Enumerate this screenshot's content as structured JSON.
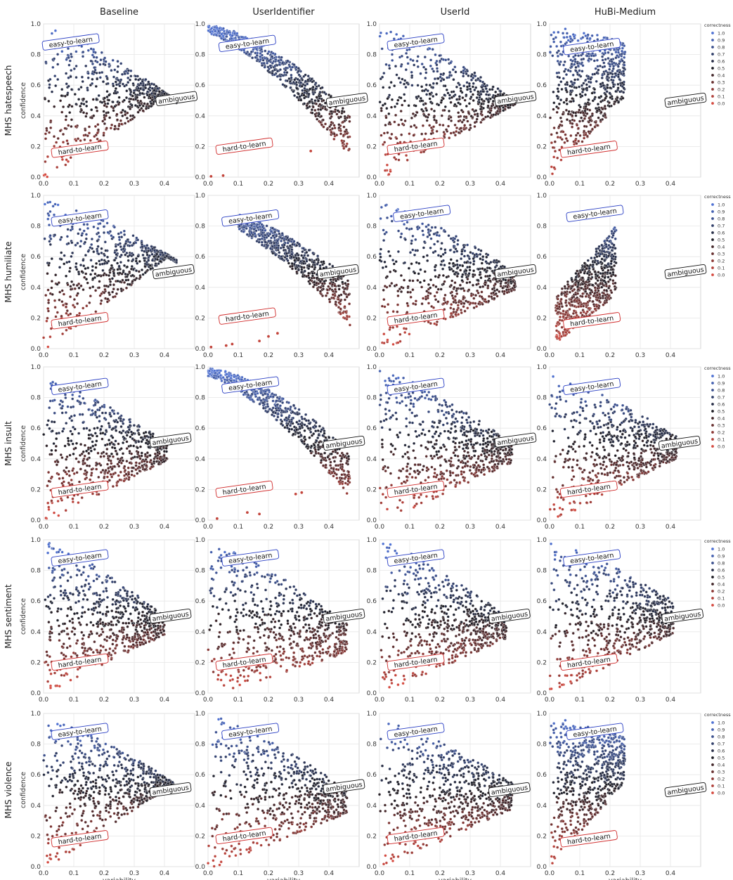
{
  "figure": {
    "columns": [
      "Baseline",
      "UserIdentifier",
      "UserId",
      "HuBi-Medium"
    ],
    "rows": [
      "MHS hatespeech",
      "MHS humiliate",
      "MHS insult",
      "MHS sentiment",
      "MHS violence"
    ],
    "ylabel": "confidence",
    "xlabel": "variability",
    "region_labels": {
      "easy": "easy-to-learn",
      "ambiguous": "ambiguous",
      "hard": "hard-to-learn"
    },
    "legend_title": "correctness",
    "legend_values": [
      "1.0",
      "0.9",
      "0.8",
      "0.7",
      "0.6",
      "0.5",
      "0.4",
      "0.3",
      "0.2",
      "0.1",
      "0.0"
    ],
    "legend_values_sentiment": [
      "1.0",
      "0.9",
      "0.8",
      "0.6",
      "0.5",
      "0.4",
      "0.2",
      "0.1",
      "0.0"
    ],
    "legend_rows": [
      0,
      1,
      2,
      3,
      4
    ],
    "colors": {
      "high": "#4f72d4",
      "mid": "#1d1d24",
      "low": "#d5493f",
      "grid": "#e6e6e6",
      "spine": "#cccccc"
    }
  },
  "chart_data": [
    {
      "type": "scatter",
      "row": "MHS hatespeech",
      "model": "Baseline",
      "xlim": [
        0,
        0.5
      ],
      "ylim": [
        0,
        1
      ],
      "x_ticks": [
        "0.0",
        "0.1",
        "0.2",
        "0.3",
        "0.4"
      ],
      "y_ticks": [
        "0.0",
        "0.2",
        "0.4",
        "0.6",
        "0.8",
        "1.0"
      ],
      "xlabel": "",
      "ylabel": "confidence",
      "region_positions": {
        "easy": [
          0.09,
          0.88
        ],
        "ambiguous": [
          0.44,
          0.51
        ],
        "hard": [
          0.12,
          0.18
        ]
      },
      "spread": {
        "top_start": 0.99,
        "top_end": 0.5,
        "top_xmax": 0.44,
        "bottom_slope": 1.35,
        "xmax": 0.44,
        "hard_share": 0.25
      }
    },
    {
      "type": "scatter",
      "row": "MHS hatespeech",
      "model": "UserIdentifier",
      "xlim": [
        0,
        0.5
      ],
      "ylim": [
        0,
        1
      ],
      "x_ticks": [
        "0.0",
        "0.1",
        "0.2",
        "0.3",
        "0.4"
      ],
      "y_ticks": [
        "0.0",
        "0.2",
        "0.4",
        "0.6",
        "0.8",
        "1.0"
      ],
      "xlabel": "",
      "ylabel": "",
      "region_positions": {
        "easy": [
          0.13,
          0.87
        ],
        "ambiguous": [
          0.46,
          0.5
        ],
        "hard": [
          0.12,
          0.2
        ]
      },
      "spread": {
        "band": true,
        "top_start": 0.99,
        "top_end": 0.42,
        "top_xmax": 0.47,
        "xmax": 0.47,
        "hard_share": 0.04,
        "outliers": [
          [
            0.01,
            0.005
          ],
          [
            0.05,
            0.01
          ],
          [
            0.34,
            0.17
          ]
        ]
      }
    },
    {
      "type": "scatter",
      "row": "MHS hatespeech",
      "model": "UserId",
      "xlim": [
        0,
        0.5
      ],
      "ylim": [
        0,
        1
      ],
      "x_ticks": [
        "0.0",
        "0.1",
        "0.2",
        "0.3",
        "0.4"
      ],
      "y_ticks": [
        "0.0",
        "0.2",
        "0.4",
        "0.6",
        "0.8",
        "1.0"
      ],
      "xlabel": "",
      "ylabel": "",
      "region_positions": {
        "easy": [
          0.12,
          0.88
        ],
        "ambiguous": [
          0.45,
          0.51
        ],
        "hard": [
          0.12,
          0.2
        ]
      },
      "spread": {
        "top_start": 0.99,
        "top_end": 0.5,
        "top_xmax": 0.45,
        "bottom_slope": 1.1,
        "xmax": 0.45,
        "hard_share": 0.2,
        "sparse_low": true
      }
    },
    {
      "type": "scatter",
      "row": "MHS hatespeech",
      "model": "HuBi-Medium",
      "xlim": [
        0,
        0.5
      ],
      "ylim": [
        0,
        1
      ],
      "x_ticks": [
        "0.0",
        "0.1",
        "0.2",
        "0.3",
        "0.4"
      ],
      "y_ticks": [
        "0.0",
        "0.2",
        "0.4",
        "0.6",
        "0.8",
        "1.0"
      ],
      "xlabel": "",
      "ylabel": "",
      "region_positions": {
        "easy": [
          0.14,
          0.85
        ],
        "ambiguous": [
          0.45,
          0.5
        ],
        "hard": [
          0.13,
          0.18
        ]
      },
      "spread": {
        "top_start": 0.99,
        "top_end": 0.88,
        "top_xmax": 0.25,
        "bottom_slope": 2.2,
        "xmax": 0.25,
        "hard_share": 0.4
      }
    },
    {
      "type": "scatter",
      "row": "MHS humiliate",
      "model": "Baseline",
      "xlim": [
        0,
        0.5
      ],
      "ylim": [
        0,
        1
      ],
      "x_ticks": [
        "0.0",
        "0.1",
        "0.2",
        "0.3",
        "0.4"
      ],
      "y_ticks": [
        "0.0",
        "0.2",
        "0.4",
        "0.6",
        "0.8",
        "1.0"
      ],
      "xlabel": "",
      "ylabel": "confidence",
      "region_positions": {
        "easy": [
          0.12,
          0.85
        ],
        "ambiguous": [
          0.43,
          0.5
        ],
        "hard": [
          0.12,
          0.18
        ]
      },
      "spread": {
        "top_start": 0.98,
        "top_end": 0.58,
        "top_xmax": 0.44,
        "bottom_slope": 1.5,
        "xmax": 0.44,
        "hard_share": 0.25
      }
    },
    {
      "type": "scatter",
      "row": "MHS humiliate",
      "model": "UserIdentifier",
      "xlim": [
        0,
        0.5
      ],
      "ylim": [
        0,
        1
      ],
      "x_ticks": [
        "0.0",
        "0.1",
        "0.2",
        "0.3",
        "0.4"
      ],
      "y_ticks": [
        "0.0",
        "0.2",
        "0.4",
        "0.6",
        "0.8",
        "1.0"
      ],
      "xlabel": "",
      "ylabel": "",
      "region_positions": {
        "easy": [
          0.14,
          0.85
        ],
        "ambiguous": [
          0.43,
          0.5
        ],
        "hard": [
          0.13,
          0.21
        ]
      },
      "spread": {
        "band": true,
        "top_start": 0.92,
        "top_end": 0.45,
        "top_xmax": 0.47,
        "xmin_band": 0.1,
        "xmax": 0.47,
        "hard_share": 0.15,
        "outliers": [
          [
            0.01,
            0.01
          ],
          [
            0.06,
            0.02
          ],
          [
            0.08,
            0.03
          ],
          [
            0.17,
            0.05
          ],
          [
            0.2,
            0.08
          ],
          [
            0.23,
            0.1
          ]
        ]
      }
    },
    {
      "type": "scatter",
      "row": "MHS humiliate",
      "model": "UserId",
      "xlim": [
        0,
        0.5
      ],
      "ylim": [
        0,
        1
      ],
      "x_ticks": [
        "0.0",
        "0.1",
        "0.2",
        "0.3",
        "0.4"
      ],
      "y_ticks": [
        "0.0",
        "0.2",
        "0.4",
        "0.6",
        "0.8",
        "1.0"
      ],
      "xlabel": "",
      "ylabel": "",
      "region_positions": {
        "easy": [
          0.14,
          0.88
        ],
        "ambiguous": [
          0.45,
          0.5
        ],
        "hard": [
          0.12,
          0.2
        ]
      },
      "spread": {
        "top_start": 0.95,
        "top_end": 0.5,
        "top_xmax": 0.45,
        "bottom_slope": 0.9,
        "xmax": 0.45,
        "hard_share": 0.35
      }
    },
    {
      "type": "scatter",
      "row": "MHS humiliate",
      "model": "HuBi-Medium",
      "xlim": [
        0,
        0.5
      ],
      "ylim": [
        0,
        1
      ],
      "x_ticks": [
        "0.0",
        "0.1",
        "0.2",
        "0.3",
        "0.4"
      ],
      "y_ticks": [
        "0.0",
        "0.2",
        "0.4",
        "0.6",
        "0.8",
        "1.0"
      ],
      "xlabel": "",
      "ylabel": "",
      "region_positions": {
        "easy": [
          0.15,
          0.88
        ],
        "ambiguous": [
          0.45,
          0.5
        ],
        "hard": [
          0.14,
          0.18
        ]
      },
      "spread": {
        "top_start": 0.3,
        "top_end": 0.8,
        "top_xmax": 0.22,
        "rising": true,
        "bottom_slope": 1.2,
        "xmax": 0.22,
        "hard_share": 0.45
      }
    },
    {
      "type": "scatter",
      "row": "MHS insult",
      "model": "Baseline",
      "xlim": [
        0,
        0.5
      ],
      "ylim": [
        0,
        1
      ],
      "x_ticks": [
        "0.0",
        "0.1",
        "0.2",
        "0.3",
        "0.4"
      ],
      "y_ticks": [
        "0.0",
        "0.2",
        "0.4",
        "0.6",
        "0.8",
        "1.0"
      ],
      "xlabel": "",
      "ylabel": "confidence",
      "region_positions": {
        "easy": [
          0.12,
          0.87
        ],
        "ambiguous": [
          0.42,
          0.52
        ],
        "hard": [
          0.12,
          0.2
        ]
      },
      "spread": {
        "top_start": 0.93,
        "top_end": 0.5,
        "top_xmax": 0.41,
        "bottom_slope": 1.0,
        "xmax": 0.41,
        "hard_share": 0.38
      }
    },
    {
      "type": "scatter",
      "row": "MHS insult",
      "model": "UserIdentifier",
      "xlim": [
        0,
        0.5
      ],
      "ylim": [
        0,
        1
      ],
      "x_ticks": [
        "0.0",
        "0.1",
        "0.2",
        "0.3",
        "0.4"
      ],
      "y_ticks": [
        "0.0",
        "0.2",
        "0.4",
        "0.6",
        "0.8",
        "1.0"
      ],
      "xlabel": "",
      "ylabel": "",
      "region_positions": {
        "easy": [
          0.14,
          0.88
        ],
        "ambiguous": [
          0.45,
          0.5
        ],
        "hard": [
          0.12,
          0.2
        ]
      },
      "spread": {
        "band": true,
        "top_start": 0.99,
        "top_end": 0.45,
        "top_xmax": 0.47,
        "xmax": 0.47,
        "hard_share": 0.06,
        "outliers": [
          [
            0.03,
            0.01
          ],
          [
            0.13,
            0.05
          ],
          [
            0.17,
            0.04
          ],
          [
            0.29,
            0.17
          ],
          [
            0.31,
            0.18
          ]
        ]
      }
    },
    {
      "type": "scatter",
      "row": "MHS insult",
      "model": "UserId",
      "xlim": [
        0,
        0.5
      ],
      "ylim": [
        0,
        1
      ],
      "x_ticks": [
        "0.0",
        "0.1",
        "0.2",
        "0.3",
        "0.4"
      ],
      "y_ticks": [
        "0.0",
        "0.2",
        "0.4",
        "0.6",
        "0.8",
        "1.0"
      ],
      "xlabel": "",
      "ylabel": "",
      "region_positions": {
        "easy": [
          0.12,
          0.87
        ],
        "ambiguous": [
          0.45,
          0.52
        ],
        "hard": [
          0.12,
          0.2
        ]
      },
      "spread": {
        "top_start": 0.98,
        "top_end": 0.5,
        "top_xmax": 0.44,
        "bottom_slope": 0.9,
        "xmax": 0.44,
        "hard_share": 0.4
      }
    },
    {
      "type": "scatter",
      "row": "MHS insult",
      "model": "HuBi-Medium",
      "xlim": [
        0,
        0.5
      ],
      "ylim": [
        0,
        1
      ],
      "x_ticks": [
        "0.0",
        "0.1",
        "0.2",
        "0.3",
        "0.4"
      ],
      "y_ticks": [
        "0.0",
        "0.2",
        "0.4",
        "0.6",
        "0.8",
        "1.0"
      ],
      "xlabel": "",
      "ylabel": "",
      "region_positions": {
        "easy": [
          0.14,
          0.87
        ],
        "ambiguous": [
          0.43,
          0.5
        ],
        "hard": [
          0.13,
          0.2
        ]
      },
      "spread": {
        "top_start": 0.95,
        "top_end": 0.55,
        "top_xmax": 0.42,
        "bottom_slope": 1.0,
        "xmax": 0.42,
        "hard_share": 0.38
      }
    },
    {
      "type": "scatter",
      "row": "MHS sentiment",
      "model": "Baseline",
      "xlim": [
        0,
        0.5
      ],
      "ylim": [
        0,
        1
      ],
      "x_ticks": [
        "0.0",
        "0.1",
        "0.2",
        "0.3",
        "0.4"
      ],
      "y_ticks": [
        "0.0",
        "0.2",
        "0.4",
        "0.6",
        "0.8",
        "1.0"
      ],
      "xlabel": "",
      "ylabel": "confidence",
      "region_positions": {
        "easy": [
          0.12,
          0.88
        ],
        "ambiguous": [
          0.42,
          0.5
        ],
        "hard": [
          0.12,
          0.2
        ]
      },
      "spread": {
        "top_start": 0.99,
        "top_end": 0.5,
        "top_xmax": 0.4,
        "bottom_slope": 1.0,
        "xmax": 0.4,
        "hard_share": 0.4
      }
    },
    {
      "type": "scatter",
      "row": "MHS sentiment",
      "model": "UserIdentifier",
      "xlim": [
        0,
        0.5
      ],
      "ylim": [
        0,
        1
      ],
      "x_ticks": [
        "0.0",
        "0.1",
        "0.2",
        "0.3",
        "0.4"
      ],
      "y_ticks": [
        "0.0",
        "0.2",
        "0.4",
        "0.6",
        "0.8",
        "1.0"
      ],
      "xlabel": "",
      "ylabel": "",
      "region_positions": {
        "easy": [
          0.14,
          0.88
        ],
        "ambiguous": [
          0.45,
          0.5
        ],
        "hard": [
          0.12,
          0.2
        ]
      },
      "spread": {
        "top_start": 0.99,
        "top_end": 0.45,
        "top_xmax": 0.46,
        "bottom_slope": 0.6,
        "xmax": 0.46,
        "hard_share": 0.45
      }
    },
    {
      "type": "scatter",
      "row": "MHS sentiment",
      "model": "UserId",
      "xlim": [
        0,
        0.5
      ],
      "ylim": [
        0,
        1
      ],
      "x_ticks": [
        "0.0",
        "0.1",
        "0.2",
        "0.3",
        "0.4"
      ],
      "y_ticks": [
        "0.0",
        "0.2",
        "0.4",
        "0.6",
        "0.8",
        "1.0"
      ],
      "xlabel": "",
      "ylabel": "",
      "region_positions": {
        "easy": [
          0.12,
          0.88
        ],
        "ambiguous": [
          0.43,
          0.5
        ],
        "hard": [
          0.12,
          0.2
        ]
      },
      "spread": {
        "top_start": 0.99,
        "top_end": 0.5,
        "top_xmax": 0.42,
        "bottom_slope": 0.9,
        "xmax": 0.42,
        "hard_share": 0.42
      }
    },
    {
      "type": "scatter",
      "row": "MHS sentiment",
      "model": "HuBi-Medium",
      "xlim": [
        0,
        0.5
      ],
      "ylim": [
        0,
        1
      ],
      "x_ticks": [
        "0.0",
        "0.1",
        "0.2",
        "0.3",
        "0.4"
      ],
      "y_ticks": [
        "0.0",
        "0.2",
        "0.4",
        "0.6",
        "0.8",
        "1.0"
      ],
      "xlabel": "",
      "ylabel": "",
      "region_positions": {
        "easy": [
          0.14,
          0.88
        ],
        "ambiguous": [
          0.44,
          0.5
        ],
        "hard": [
          0.13,
          0.2
        ]
      },
      "spread": {
        "top_start": 0.99,
        "top_end": 0.6,
        "top_xmax": 0.41,
        "bottom_slope": 1.0,
        "xmax": 0.41,
        "hard_share": 0.4
      }
    },
    {
      "type": "scatter",
      "row": "MHS violence",
      "model": "Baseline",
      "xlim": [
        0,
        0.5
      ],
      "ylim": [
        0,
        1
      ],
      "x_ticks": [
        "0.0",
        "0.1",
        "0.2",
        "0.3",
        "0.4"
      ],
      "y_ticks": [
        "0.0",
        "0.2",
        "0.4",
        "0.6",
        "0.8",
        "1.0"
      ],
      "xlabel": "variability",
      "ylabel": "confidence",
      "region_positions": {
        "easy": [
          0.12,
          0.88
        ],
        "ambiguous": [
          0.42,
          0.5
        ],
        "hard": [
          0.12,
          0.18
        ]
      },
      "spread": {
        "top_start": 0.98,
        "top_end": 0.55,
        "top_xmax": 0.43,
        "bottom_slope": 1.3,
        "xmax": 0.43,
        "hard_share": 0.3
      }
    },
    {
      "type": "scatter",
      "row": "MHS violence",
      "model": "UserIdentifier",
      "xlim": [
        0,
        0.5
      ],
      "ylim": [
        0,
        1
      ],
      "x_ticks": [
        "0.0",
        "0.1",
        "0.2",
        "0.3",
        "0.4"
      ],
      "y_ticks": [
        "0.0",
        "0.2",
        "0.4",
        "0.6",
        "0.8",
        "1.0"
      ],
      "xlabel": "variability",
      "ylabel": "",
      "region_positions": {
        "easy": [
          0.14,
          0.88
        ],
        "ambiguous": [
          0.45,
          0.52
        ],
        "hard": [
          0.12,
          0.2
        ]
      },
      "spread": {
        "top_start": 0.99,
        "top_end": 0.5,
        "top_xmax": 0.46,
        "bottom_slope": 0.8,
        "xmax": 0.46,
        "hard_share": 0.35
      }
    },
    {
      "type": "scatter",
      "row": "MHS violence",
      "model": "UserId",
      "xlim": [
        0,
        0.5
      ],
      "ylim": [
        0,
        1
      ],
      "x_ticks": [
        "0.0",
        "0.1",
        "0.2",
        "0.3",
        "0.4"
      ],
      "y_ticks": [
        "0.0",
        "0.2",
        "0.4",
        "0.6",
        "0.8",
        "1.0"
      ],
      "xlabel": "variability",
      "ylabel": "",
      "region_positions": {
        "easy": [
          0.12,
          0.88
        ],
        "ambiguous": [
          0.43,
          0.5
        ],
        "hard": [
          0.12,
          0.2
        ]
      },
      "spread": {
        "top_start": 0.96,
        "top_end": 0.55,
        "top_xmax": 0.44,
        "bottom_slope": 0.9,
        "xmax": 0.44,
        "hard_share": 0.35
      }
    },
    {
      "type": "scatter",
      "row": "MHS violence",
      "model": "HuBi-Medium",
      "xlim": [
        0,
        0.5
      ],
      "ylim": [
        0,
        1
      ],
      "x_ticks": [
        "0.0",
        "0.1",
        "0.2",
        "0.3",
        "0.4"
      ],
      "y_ticks": [
        "0.0",
        "0.2",
        "0.4",
        "0.6",
        "0.8",
        "1.0"
      ],
      "xlabel": "variability",
      "ylabel": "",
      "region_positions": {
        "easy": [
          0.15,
          0.88
        ],
        "ambiguous": [
          0.45,
          0.5
        ],
        "hard": [
          0.13,
          0.18
        ]
      },
      "spread": {
        "top_start": 0.98,
        "top_end": 0.85,
        "top_xmax": 0.25,
        "bottom_slope": 2.3,
        "xmax": 0.25,
        "hard_share": 0.38
      }
    }
  ]
}
